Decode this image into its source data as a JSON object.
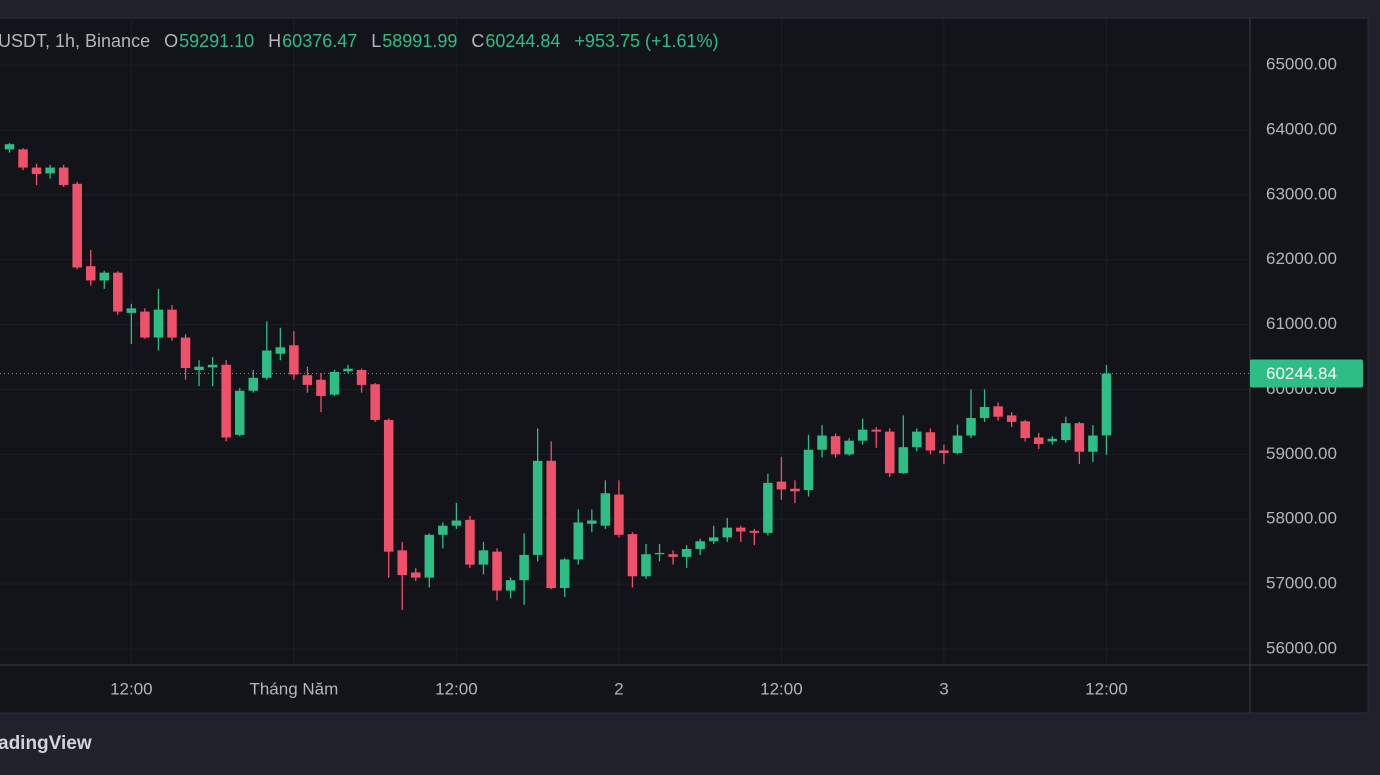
{
  "header": {
    "symbol": "USDT, 1h, Binance",
    "ohlc": [
      {
        "label": "O",
        "value": "59291.10"
      },
      {
        "label": "H",
        "value": "60376.47"
      },
      {
        "label": "L",
        "value": "58991.99"
      },
      {
        "label": "C",
        "value": "60244.84"
      }
    ],
    "change": "+953.75 (+1.61%)"
  },
  "footer": "adingView",
  "chart_data": {
    "type": "candlestick",
    "up_color": "#2ebd85",
    "down_color": "#f0516a",
    "grid": true,
    "x": [
      -21,
      -20,
      -19,
      -18,
      -17,
      -16,
      -15,
      -14,
      -13,
      -12,
      -11,
      -10,
      -9,
      -8,
      -7,
      -6,
      -5,
      -4,
      -3,
      -2,
      -1,
      0,
      1,
      2,
      3,
      4,
      5,
      6,
      7,
      8,
      9,
      10,
      11,
      12,
      13,
      14,
      15,
      16,
      17,
      18,
      19,
      20,
      21,
      22,
      23,
      24,
      25,
      26,
      27,
      28,
      29,
      30,
      31,
      32,
      33,
      34,
      35,
      36,
      37,
      38,
      39,
      40,
      41,
      42,
      43,
      44,
      45,
      46,
      47,
      48,
      49,
      50,
      51,
      52,
      53,
      54,
      55,
      56,
      57,
      58,
      59,
      60
    ],
    "open": [
      63700,
      63700,
      63420,
      63330,
      63420,
      63170,
      61900,
      61680,
      61800,
      61180,
      61200,
      60800,
      61230,
      60800,
      60300,
      60340,
      60380,
      59300,
      59980,
      60180,
      60550,
      60680,
      60220,
      60150,
      59920,
      60280,
      60300,
      60080,
      59530,
      57520,
      57180,
      57100,
      57760,
      57900,
      57990,
      57300,
      57500,
      56900,
      57060,
      57450,
      58900,
      56940,
      57380,
      57930,
      57900,
      58380,
      57770,
      57120,
      57460,
      57460,
      57420,
      57540,
      57660,
      57720,
      57870,
      57820,
      57790,
      58580,
      58470,
      58450,
      59070,
      59280,
      59000,
      59210,
      59380,
      59350,
      58710,
      59110,
      59340,
      59060,
      59020,
      59290,
      59560,
      59740,
      59600,
      59510,
      59260,
      59200,
      59220,
      59480,
      59040,
      59291.1
    ],
    "high": [
      63800,
      63720,
      63480,
      63460,
      63460,
      63200,
      62150,
      61830,
      61820,
      61320,
      61250,
      61550,
      61300,
      60850,
      60450,
      60500,
      60450,
      60020,
      60300,
      61050,
      60950,
      60900,
      60350,
      60250,
      60300,
      60380,
      60320,
      60100,
      59550,
      57650,
      57250,
      57780,
      57950,
      58250,
      58050,
      57650,
      57550,
      57100,
      57780,
      59400,
      59200,
      57400,
      58150,
      58150,
      58600,
      58600,
      57800,
      57620,
      57620,
      57520,
      57600,
      57700,
      57900,
      58020,
      57900,
      57850,
      58700,
      58960,
      58600,
      59300,
      59450,
      59320,
      59250,
      59550,
      59420,
      59400,
      59600,
      59400,
      59400,
      59150,
      59460,
      60000,
      60000,
      59800,
      59650,
      59530,
      59330,
      59280,
      59580,
      59500,
      59450,
      60376.47
    ],
    "low": [
      63650,
      63380,
      63150,
      63250,
      63120,
      61850,
      61600,
      61550,
      61150,
      60700,
      60780,
      60600,
      60750,
      60150,
      60050,
      60050,
      59200,
      59280,
      59950,
      60150,
      60450,
      60150,
      59950,
      59650,
      59900,
      60250,
      59950,
      59500,
      57100,
      56600,
      57050,
      56950,
      57550,
      57850,
      57250,
      57150,
      56750,
      56780,
      56680,
      57350,
      56920,
      56800,
      57300,
      57800,
      57850,
      57720,
      56950,
      57080,
      57350,
      57300,
      57250,
      57450,
      57620,
      57650,
      57650,
      57600,
      57750,
      58300,
      58250,
      58350,
      58950,
      58950,
      58980,
      59150,
      59100,
      58650,
      58700,
      59050,
      59000,
      58850,
      59000,
      59250,
      59500,
      59520,
      59420,
      59200,
      59080,
      59150,
      59180,
      58850,
      58880,
      58991.99
    ],
    "close": [
      63780,
      63420,
      63320,
      63420,
      63150,
      61880,
      61680,
      61800,
      61200,
      61250,
      60800,
      61230,
      60800,
      60330,
      60350,
      60380,
      59260,
      59980,
      60180,
      60600,
      60650,
      60230,
      60070,
      59900,
      60270,
      60320,
      60070,
      59530,
      57500,
      57140,
      57100,
      57760,
      57900,
      57980,
      57300,
      57520,
      56900,
      57060,
      57450,
      58900,
      56940,
      57380,
      57950,
      57980,
      58400,
      57760,
      57120,
      57460,
      57480,
      57420,
      57540,
      57660,
      57720,
      57870,
      57810,
      57790,
      58560,
      58460,
      58430,
      59070,
      59290,
      59000,
      59210,
      59380,
      59350,
      58710,
      59110,
      59350,
      59060,
      59020,
      59290,
      59560,
      59730,
      59580,
      59500,
      59250,
      59160,
      59240,
      59480,
      59040,
      59290,
      60244.84
    ],
    "xlim": [
      -21.7,
      70.6
    ],
    "xticks": [
      {
        "value": -12,
        "label": "12:00"
      },
      {
        "value": 0,
        "label": "Tháng Năm"
      },
      {
        "value": 12,
        "label": "12:00"
      },
      {
        "value": 24,
        "label": "2"
      },
      {
        "value": 36,
        "label": "12:00"
      },
      {
        "value": 48,
        "label": "3"
      },
      {
        "value": 60,
        "label": "12:00"
      }
    ],
    "ylim": [
      55753,
      65725
    ],
    "yticks": [
      {
        "value": 56000,
        "label": "56000.00"
      },
      {
        "value": 57000,
        "label": "57000.00"
      },
      {
        "value": 58000,
        "label": "58000.00"
      },
      {
        "value": 59000,
        "label": "59000.00"
      },
      {
        "value": 60000,
        "label": "60000.00"
      },
      {
        "value": 61000,
        "label": "61000.00"
      },
      {
        "value": 62000,
        "label": "62000.00"
      },
      {
        "value": 63000,
        "label": "63000.00"
      },
      {
        "value": 64000,
        "label": "64000.00"
      },
      {
        "value": 65000,
        "label": "65000.00"
      }
    ]
  }
}
